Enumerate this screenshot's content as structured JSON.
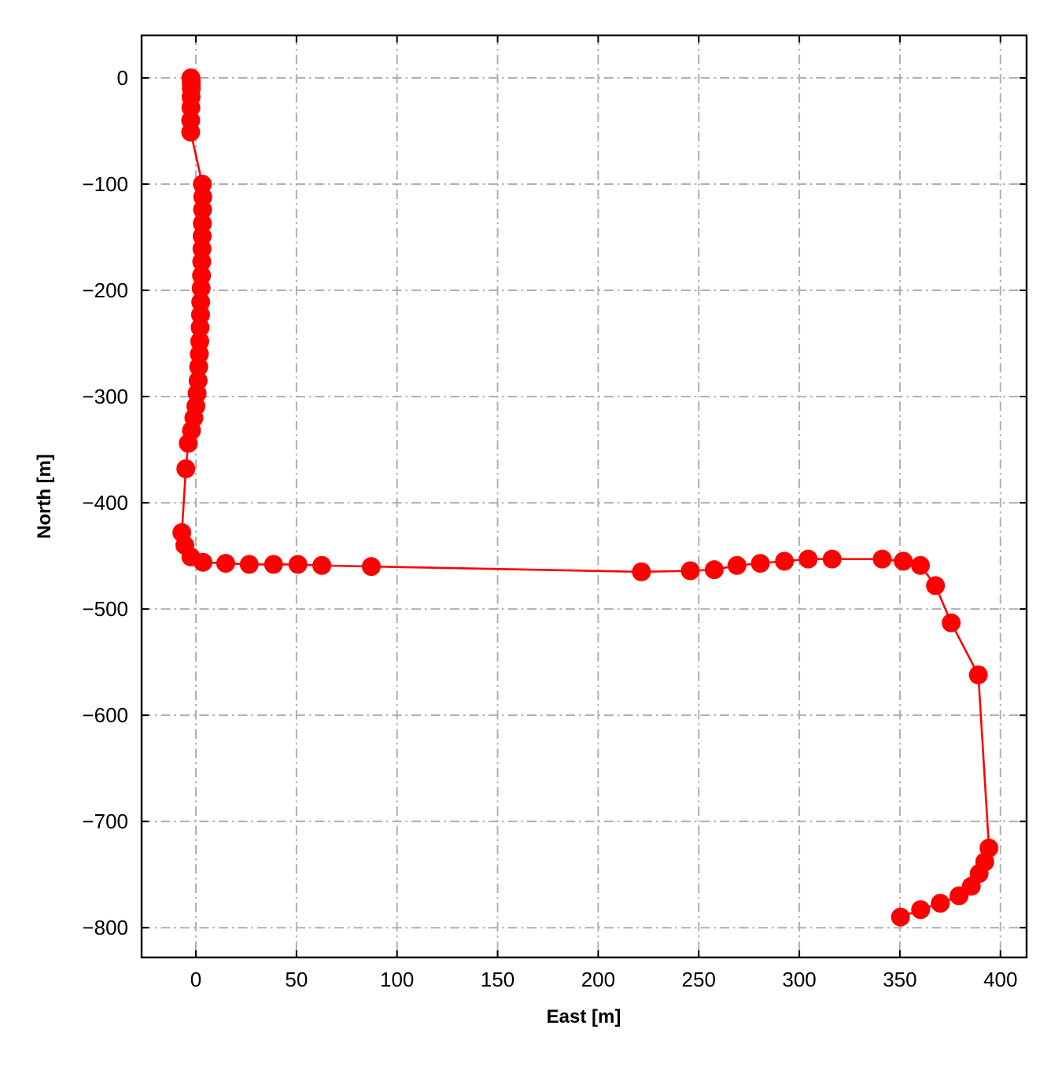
{
  "chart_data": {
    "type": "line",
    "xlabel": "East [m]",
    "ylabel": "North [m]",
    "xlim": [
      -27,
      413
    ],
    "ylim": [
      -828,
      40
    ],
    "grid": true,
    "grid_style": "dash-dot",
    "markers": true,
    "x_ticks": [
      0,
      50,
      100,
      150,
      200,
      250,
      300,
      350,
      400
    ],
    "y_ticks": [
      0,
      -100,
      -200,
      -300,
      -400,
      -500,
      -600,
      -700,
      -800
    ],
    "x_tick_labels": [
      "0",
      "50",
      "100",
      "150",
      "200",
      "250",
      "300",
      "350",
      "400"
    ],
    "y_tick_labels": [
      "0",
      "−100",
      "−200",
      "−300",
      "−400",
      "−500",
      "−600",
      "−700",
      "−800"
    ],
    "series": [
      {
        "color": "#ff0000",
        "points": [
          [
            -2.5,
            0
          ],
          [
            -2.4,
            -2
          ],
          [
            -2.3,
            -5
          ],
          [
            -2.3,
            -10
          ],
          [
            -2.4,
            -18
          ],
          [
            -2.5,
            -28
          ],
          [
            -2.6,
            -40
          ],
          [
            -2.6,
            -51
          ],
          [
            3.2,
            -100
          ],
          [
            3.4,
            -112
          ],
          [
            3.3,
            -124
          ],
          [
            3.2,
            -137
          ],
          [
            3.1,
            -149
          ],
          [
            3.0,
            -161
          ],
          [
            2.9,
            -173
          ],
          [
            2.8,
            -186
          ],
          [
            2.6,
            -198
          ],
          [
            2.4,
            -211
          ],
          [
            2.3,
            -223
          ],
          [
            2.1,
            -235
          ],
          [
            1.9,
            -248
          ],
          [
            1.7,
            -260
          ],
          [
            1.4,
            -272
          ],
          [
            1.1,
            -285
          ],
          [
            0.6,
            -297
          ],
          [
            0.0,
            -309
          ],
          [
            -1.0,
            -320
          ],
          [
            -2.2,
            -332
          ],
          [
            -3.8,
            -344
          ],
          [
            -5.0,
            -368
          ],
          [
            -7.0,
            -428
          ],
          [
            -5.5,
            -440
          ],
          [
            -2.5,
            -451
          ],
          [
            3.5,
            -456
          ],
          [
            14.8,
            -457
          ],
          [
            26.5,
            -458
          ],
          [
            38.6,
            -458
          ],
          [
            50.7,
            -458
          ],
          [
            62.6,
            -459
          ],
          [
            87.2,
            -460
          ],
          [
            221.5,
            -465
          ],
          [
            245.8,
            -464
          ],
          [
            257.7,
            -463
          ],
          [
            269.0,
            -459
          ],
          [
            280.6,
            -457
          ],
          [
            292.6,
            -455
          ],
          [
            304.4,
            -453
          ],
          [
            316.3,
            -453
          ],
          [
            341.2,
            -453
          ],
          [
            351.7,
            -455
          ],
          [
            360.2,
            -459
          ],
          [
            367.7,
            -478
          ],
          [
            375.5,
            -513
          ],
          [
            389.0,
            -562
          ],
          [
            394.3,
            -725
          ],
          [
            392.2,
            -738
          ],
          [
            389.4,
            -749
          ],
          [
            385.5,
            -761
          ],
          [
            379.4,
            -770
          ],
          [
            370.1,
            -777
          ],
          [
            360.3,
            -783
          ],
          [
            350.3,
            -790
          ]
        ]
      }
    ]
  }
}
